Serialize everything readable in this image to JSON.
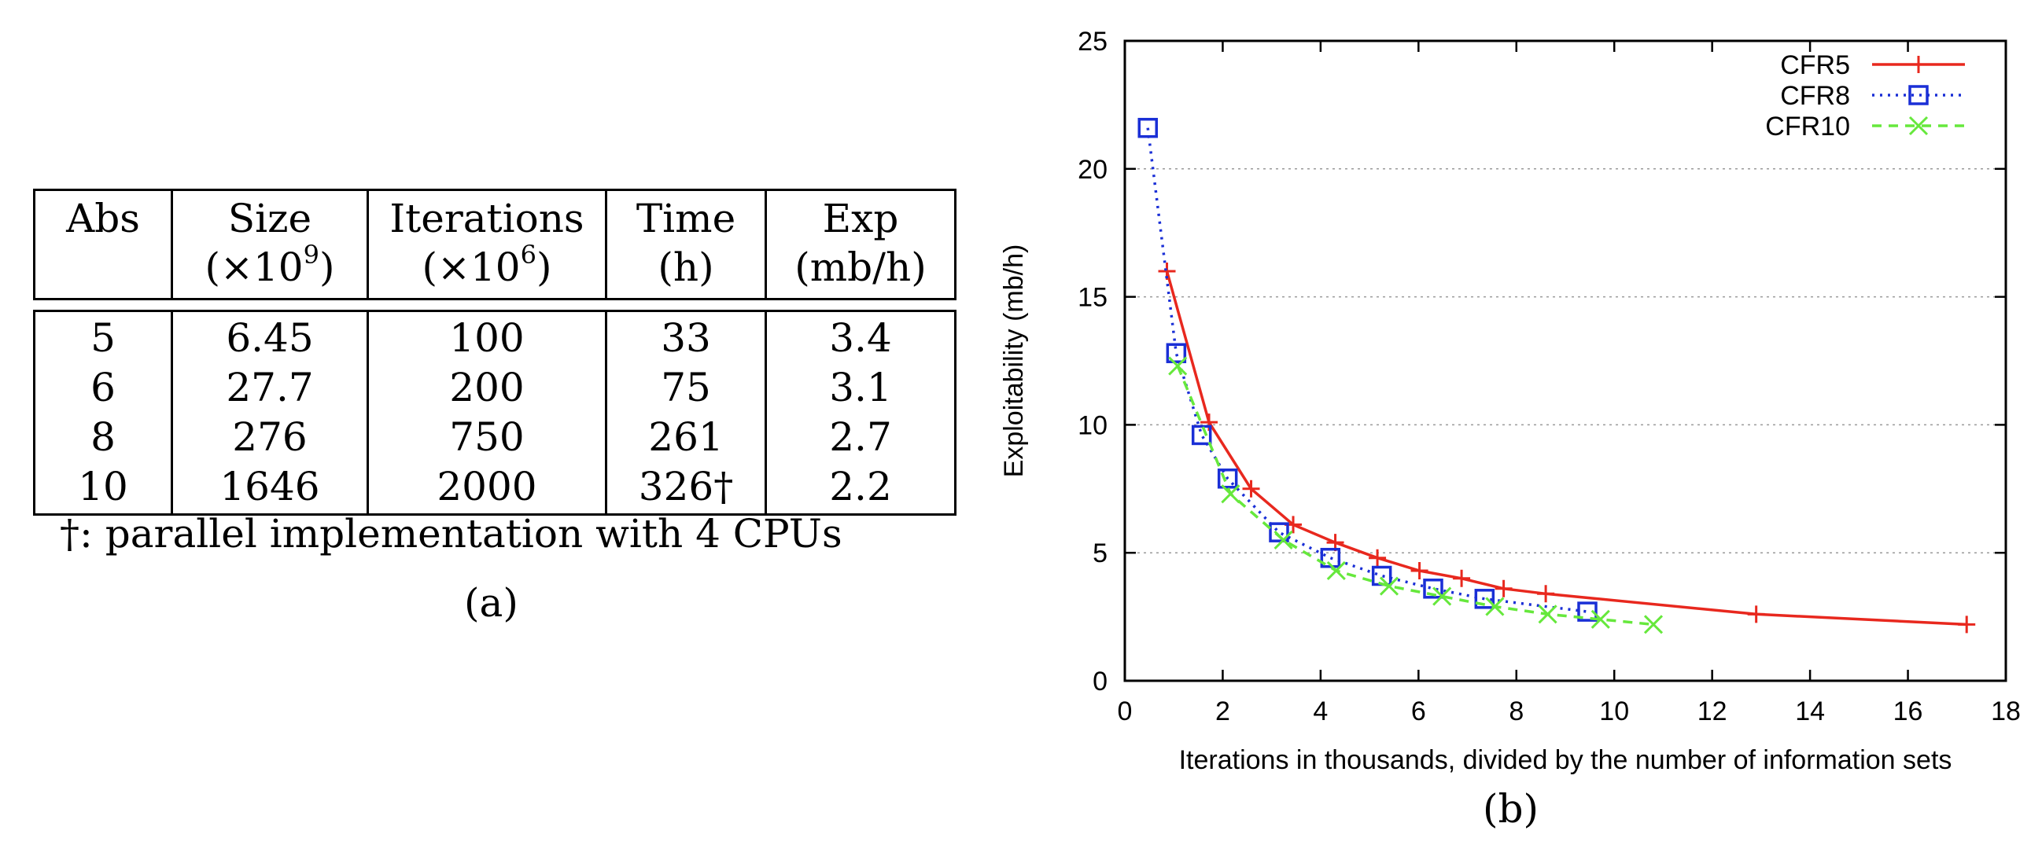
{
  "table": {
    "headers": [
      {
        "line1": "Abs",
        "line2": ""
      },
      {
        "line1": "Size",
        "line2": "(×10",
        "sup": "9",
        "close": ")"
      },
      {
        "line1": "Iterations",
        "line2": "(×10",
        "sup": "6",
        "close": ")"
      },
      {
        "line1": "Time",
        "line2": "(h)"
      },
      {
        "line1": "Exp",
        "line2": "(mb/h)"
      }
    ],
    "rows": [
      [
        "5",
        "6.45",
        "100",
        "33",
        "3.4"
      ],
      [
        "6",
        "27.7",
        "200",
        "75",
        "3.1"
      ],
      [
        "8",
        "276",
        "750",
        "261",
        "2.7"
      ],
      [
        "10",
        "1646",
        "2000",
        "326†",
        "2.2"
      ]
    ],
    "footnote": "†: parallel implementation with 4 CPUs",
    "caption": "(a)"
  },
  "chart_caption": "(b)",
  "chart_data": {
    "type": "line",
    "xlabel": "Iterations in thousands, divided by the number of information sets",
    "ylabel": "Exploitability (mb/h)",
    "xlim": [
      0,
      18
    ],
    "ylim": [
      0,
      25
    ],
    "xticks": [
      "0",
      "2",
      "4",
      "6",
      "8",
      "10",
      "12",
      "14",
      "16",
      "18"
    ],
    "yticks": [
      "0",
      "5",
      "10",
      "15",
      "20",
      "25"
    ],
    "grid": "horizontal dotted",
    "legend_position": "top-right",
    "series": [
      {
        "name": "CFR5",
        "color": "#e8281e",
        "style": "solid",
        "marker": "plus",
        "points": [
          [
            0.86,
            16.0
          ],
          [
            1.72,
            10.1
          ],
          [
            2.58,
            7.5
          ],
          [
            3.44,
            6.1
          ],
          [
            4.3,
            5.4
          ],
          [
            5.16,
            4.8
          ],
          [
            6.02,
            4.3
          ],
          [
            6.88,
            4.0
          ],
          [
            7.74,
            3.6
          ],
          [
            8.6,
            3.4
          ],
          [
            12.9,
            2.6
          ],
          [
            17.2,
            2.2
          ]
        ]
      },
      {
        "name": "CFR8",
        "color": "#1a2fd6",
        "style": "dotted",
        "marker": "square",
        "points": [
          [
            0.47,
            21.6
          ],
          [
            1.05,
            12.8
          ],
          [
            1.57,
            9.6
          ],
          [
            2.1,
            7.9
          ],
          [
            3.15,
            5.8
          ],
          [
            4.2,
            4.8
          ],
          [
            5.25,
            4.1
          ],
          [
            6.3,
            3.6
          ],
          [
            7.35,
            3.2
          ],
          [
            9.45,
            2.7
          ]
        ]
      },
      {
        "name": "CFR10",
        "color": "#66e83c",
        "style": "dashed",
        "marker": "cross",
        "points": [
          [
            1.08,
            12.3
          ],
          [
            2.16,
            7.3
          ],
          [
            3.24,
            5.5
          ],
          [
            4.32,
            4.3
          ],
          [
            5.4,
            3.7
          ],
          [
            6.48,
            3.3
          ],
          [
            7.56,
            2.9
          ],
          [
            8.64,
            2.6
          ],
          [
            9.72,
            2.4
          ],
          [
            10.8,
            2.2
          ]
        ]
      }
    ]
  }
}
